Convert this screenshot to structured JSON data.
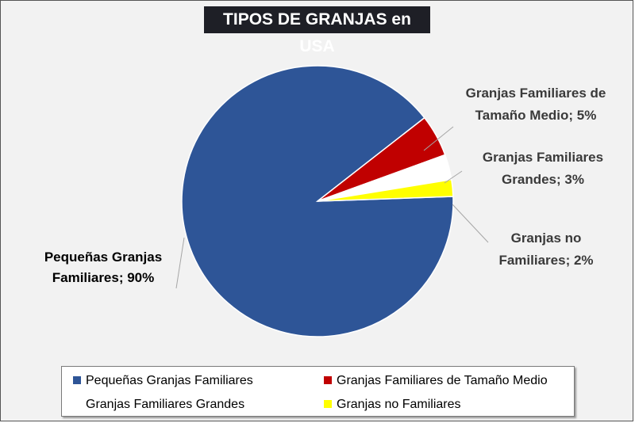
{
  "chart_data": {
    "type": "pie",
    "title": "TIPOS DE GRANJAS en USA",
    "slices": [
      {
        "name": "Pequeñas Granjas Familiares",
        "value": 90,
        "color": "#2e5597",
        "label_line1": "Pequeñas Granjas",
        "label_line2": "Familiares; 90%"
      },
      {
        "name": "Granjas Familiares de Tamaño Medio",
        "value": 5,
        "color": "#c00000",
        "label_line1": "Granjas Familiares de",
        "label_line2": "Tamaño Medio; 5%"
      },
      {
        "name": "Granjas Familiares Grandes",
        "value": 3,
        "color": "#ffffff",
        "label_line1": "Granjas Familiares",
        "label_line2": "Grandes; 3%"
      },
      {
        "name": "Granjas no Familiares",
        "value": 2,
        "color": "#ffff00",
        "label_line1": "Granjas no",
        "label_line2": "Familiares; 2%"
      }
    ],
    "legend_placement": "bottom"
  }
}
